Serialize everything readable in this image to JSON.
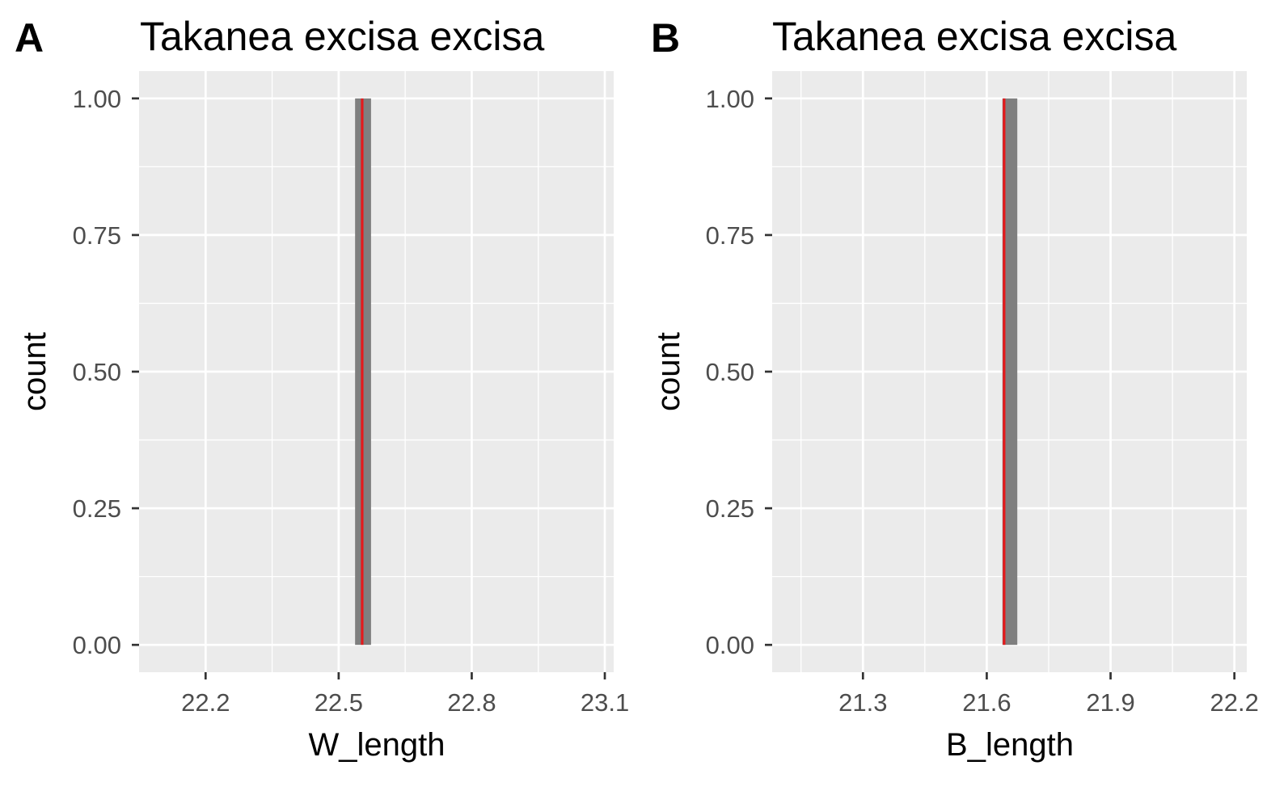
{
  "chart_data": [
    {
      "type": "histogram",
      "panel_tag": "A",
      "title": "Takanea excisa excisa",
      "xlabel": "W_length",
      "ylabel": "count",
      "xlim": [
        22.05,
        23.12
      ],
      "ylim": [
        -0.05,
        1.05
      ],
      "x_ticks": [
        22.2,
        22.5,
        22.8,
        23.1
      ],
      "x_tick_labels": [
        "22.2",
        "22.5",
        "22.8",
        "23.1"
      ],
      "y_ticks": [
        0,
        0.25,
        0.5,
        0.75,
        1
      ],
      "y_tick_labels": [
        "0.00",
        "0.25",
        "0.50",
        "0.75",
        "1.00"
      ],
      "bars": [
        {
          "x_start": 22.537,
          "x_end": 22.573,
          "count": 1
        }
      ],
      "mean_line": {
        "x": 22.553
      },
      "grid": true
    },
    {
      "type": "histogram",
      "panel_tag": "B",
      "title": "Takanea excisa excisa",
      "xlabel": "B_length",
      "ylabel": "count",
      "xlim": [
        21.08,
        22.23
      ],
      "ylim": [
        -0.05,
        1.05
      ],
      "x_ticks": [
        21.3,
        21.6,
        21.9,
        22.2
      ],
      "x_tick_labels": [
        "21.3",
        "21.6",
        "21.9",
        "22.2"
      ],
      "y_ticks": [
        0,
        0.25,
        0.5,
        0.75,
        1
      ],
      "y_tick_labels": [
        "0.00",
        "0.25",
        "0.50",
        "0.75",
        "1.00"
      ],
      "bars": [
        {
          "x_start": 21.638,
          "x_end": 21.674,
          "count": 1
        }
      ],
      "mean_line": {
        "x": 21.642
      },
      "grid": true
    }
  ],
  "colors": {
    "panel_background": "#ebebeb",
    "grid_line": "#ffffff",
    "bar_fill": "#7f7f7f",
    "mean_line": "#e41a1c",
    "tick_mark": "#333333"
  }
}
